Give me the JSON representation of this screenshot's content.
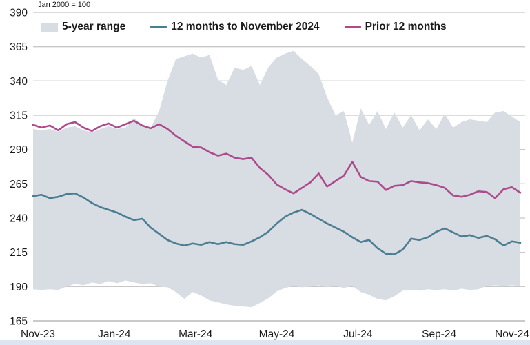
{
  "chart_data": {
    "type": "line",
    "note": "Jan 2000 = 100",
    "title": "",
    "xlabel": "",
    "ylabel": "",
    "ylim": [
      165,
      390
    ],
    "y_ticks": [
      390,
      365,
      340,
      315,
      290,
      265,
      240,
      215,
      190,
      165
    ],
    "x_tick_labels": [
      "Nov-23",
      "Jan-24",
      "Mar-24",
      "May-24",
      "Jul-24",
      "Sep-24",
      "Nov-24"
    ],
    "x_range_months": [
      0,
      12
    ],
    "grid": "horizontal-only",
    "legend_position": "top-inside",
    "legend": [
      {
        "label": "5-year range",
        "type": "area",
        "color": "#d8dde4"
      },
      {
        "label": "12 months to November 2024",
        "type": "line",
        "color": "#4b7d92"
      },
      {
        "label": "Prior 12 months",
        "type": "line",
        "color": "#ad4a8c"
      }
    ],
    "series": [
      {
        "name": "5-year range",
        "type": "band",
        "color": "#d8dde4",
        "upper": [
          305,
          304,
          305,
          303,
          306,
          307,
          304,
          302.5,
          305,
          307,
          305,
          306,
          313,
          308,
          306,
          318,
          340,
          356,
          358,
          360,
          357,
          359,
          341,
          337,
          350,
          348,
          351,
          337,
          350,
          357,
          360,
          362,
          356,
          351,
          345,
          328,
          315,
          318,
          295,
          320,
          308,
          318,
          305,
          317,
          306,
          315,
          304,
          312,
          305,
          316,
          306,
          310,
          312,
          311,
          310,
          317,
          318,
          314,
          310
        ],
        "lower": [
          188,
          187.5,
          188,
          187.5,
          190,
          192,
          191,
          193,
          192,
          194,
          192.5,
          194.5,
          193,
          192,
          192.5,
          190,
          189.5,
          186,
          181,
          186,
          183.5,
          180,
          178.5,
          177,
          176,
          175.5,
          175,
          178,
          181.5,
          186.5,
          189,
          190.5,
          189.5,
          190,
          191,
          189.5,
          190.5,
          189,
          190.5,
          186,
          184,
          181,
          180,
          183,
          187,
          187.5,
          187,
          188,
          187.5,
          188,
          187,
          188.5,
          187.5,
          188,
          190.5,
          191,
          190.5,
          191,
          190.5
        ]
      },
      {
        "name": "12 months to November 2024",
        "type": "line",
        "color": "#4b7d92",
        "values": [
          256,
          257,
          254.5,
          255.5,
          257.5,
          258,
          255,
          251,
          248,
          246,
          244,
          241,
          238.5,
          239.5,
          233,
          228.5,
          224,
          221.5,
          220,
          221.5,
          220.5,
          222.5,
          221,
          222.5,
          221,
          220.5,
          223,
          226,
          230,
          236,
          241,
          244,
          246,
          243,
          239.5,
          236,
          233,
          230,
          226,
          222.5,
          224,
          218,
          214,
          213.5,
          217,
          225,
          224,
          226,
          230,
          232.5,
          229.5,
          226.5,
          227.5,
          225.5,
          227,
          224.5,
          220,
          223,
          222
        ]
      },
      {
        "name": "Prior 12 months",
        "type": "line",
        "color": "#ad4a8c",
        "values": [
          308,
          306,
          307.5,
          304,
          308.5,
          310,
          306,
          303.5,
          307,
          309,
          306,
          308.5,
          311,
          307.5,
          305.5,
          308.5,
          305,
          300,
          296,
          292,
          291.5,
          288,
          285.5,
          287,
          284,
          283,
          284,
          276.5,
          271.5,
          264.5,
          261,
          258,
          262,
          266,
          272.5,
          263,
          267,
          271,
          281,
          270,
          267,
          266.5,
          260.5,
          263.5,
          264,
          267,
          266,
          265.5,
          264,
          262,
          256.5,
          255.5,
          257,
          259.5,
          259,
          254.5,
          261,
          262.5,
          258.5
        ]
      }
    ],
    "colors": {
      "gridline": "#c8c8c8",
      "baseline": "#ababab",
      "axis_text": "#1a1a1a",
      "bottom_strip": "#dce6f2",
      "background": "#ffffff"
    }
  }
}
